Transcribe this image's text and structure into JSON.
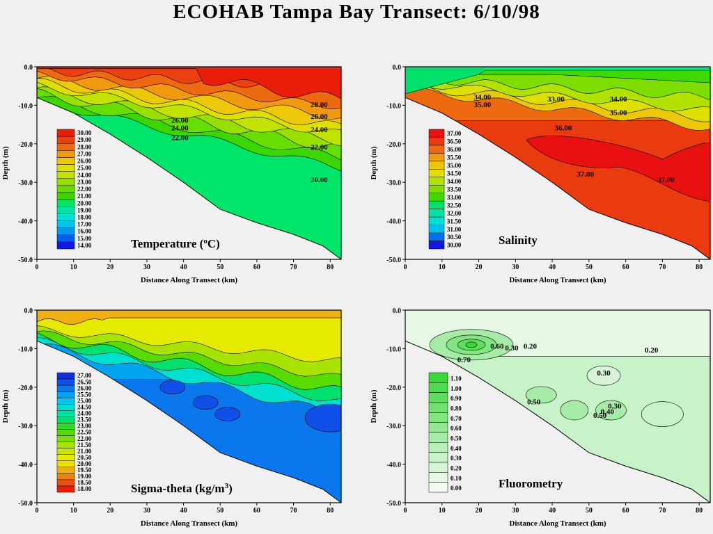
{
  "title": "ECOHAB Tampa Bay Transect: 6/10/98",
  "panels": [
    {
      "id": "temperature",
      "name": "Temperature (",
      "unit_base": "C",
      "unit_sup": "o",
      "unit_tail": ")"
    },
    {
      "id": "salinity",
      "name": "Salinity"
    },
    {
      "id": "sigma-theta",
      "name": "Sigma-theta  (kg/m",
      "unit_sup": "3",
      "unit_tail": ")"
    },
    {
      "id": "fluorometry",
      "name": "Fluorometry"
    }
  ],
  "chart_data": [
    {
      "type": "contour",
      "id": "temperature",
      "xlabel": "Distance Along Transect (km)",
      "ylabel": "Depth (m)",
      "xlim": [
        0,
        83
      ],
      "ylim": [
        -50,
        0
      ],
      "xticks": [
        "0",
        "10",
        "20",
        "30",
        "40",
        "50",
        "60",
        "70",
        "80"
      ],
      "yticks": [
        "0.0",
        "-10.0",
        "-20.0",
        "-30.0",
        "-40.0",
        "-50.0"
      ],
      "legend_values": [
        "30.00",
        "29.00",
        "28.00",
        "27.00",
        "26.00",
        "25.00",
        "24.00",
        "23.00",
        "22.00",
        "21.00",
        "20.00",
        "19.00",
        "18.00",
        "17.00",
        "16.00",
        "15.00",
        "14.00"
      ],
      "legend_colors": [
        "#e81e0a",
        "#ec4010",
        "#ee6a10",
        "#ef9a10",
        "#ecc808",
        "#dde000",
        "#c0e400",
        "#98e000",
        "#66de00",
        "#3ad800",
        "#00e66a",
        "#00e2a6",
        "#00e0d8",
        "#00c4f0",
        "#0098f0",
        "#0060ec",
        "#1018e8"
      ],
      "contour_labels": [
        {
          "text": "28.00",
          "x": 77,
          "y": -10.5
        },
        {
          "text": "26.00",
          "x": 77,
          "y": -13.5
        },
        {
          "text": "26.00",
          "x": 39,
          "y": -14.5
        },
        {
          "text": "24.00",
          "x": 39,
          "y": -16.5
        },
        {
          "text": "24.00",
          "x": 77,
          "y": -17
        },
        {
          "text": "22.00",
          "x": 39,
          "y": -19
        },
        {
          "text": "22.00",
          "x": 77,
          "y": -21.5
        },
        {
          "text": "20.00",
          "x": 77,
          "y": -30
        }
      ]
    },
    {
      "type": "contour",
      "id": "salinity",
      "xlabel": "Distance Along Transect (km)",
      "ylabel": "Depth (m)",
      "xlim": [
        0,
        83
      ],
      "ylim": [
        -50,
        0
      ],
      "xticks": [
        "0",
        "10",
        "20",
        "30",
        "40",
        "50",
        "60",
        "70",
        "80"
      ],
      "yticks": [
        "0.0",
        "-10.0",
        "-20.0",
        "-30.0",
        "-40.0",
        "-50.0"
      ],
      "legend_values": [
        "37.00",
        "36.50",
        "36.00",
        "35.50",
        "35.00",
        "34.50",
        "34.00",
        "33.50",
        "33.00",
        "32.50",
        "32.00",
        "31.50",
        "31.00",
        "30.50",
        "30.00"
      ],
      "legend_colors": [
        "#e81010",
        "#ea3a10",
        "#ee6a10",
        "#ef9a10",
        "#ecc808",
        "#dde000",
        "#b4e200",
        "#7ede00",
        "#40d800",
        "#00e06a",
        "#00e2a6",
        "#00e0d8",
        "#00c0f0",
        "#0070ec",
        "#1018e8"
      ],
      "contour_labels": [
        {
          "text": "34.00",
          "x": 21,
          "y": -8.5
        },
        {
          "text": "35.00",
          "x": 21,
          "y": -10.5
        },
        {
          "text": "33.00",
          "x": 41,
          "y": -9
        },
        {
          "text": "34.00",
          "x": 58,
          "y": -9
        },
        {
          "text": "35.00",
          "x": 58,
          "y": -12.5
        },
        {
          "text": "36.00",
          "x": 43,
          "y": -16.5
        },
        {
          "text": "37.00",
          "x": 49,
          "y": -28.5
        },
        {
          "text": "37.00",
          "x": 71,
          "y": -30
        }
      ]
    },
    {
      "type": "contour",
      "id": "sigma-theta",
      "xlabel": "Distance Along Transect (km)",
      "ylabel": "Depth (m)",
      "xlim": [
        0,
        83
      ],
      "ylim": [
        -50,
        0
      ],
      "xticks": [
        "0",
        "10",
        "20",
        "30",
        "40",
        "50",
        "60",
        "70",
        "80"
      ],
      "yticks": [
        "0.0",
        "-10.0",
        "-20.0",
        "-30.0",
        "-40.0",
        "-50.0"
      ],
      "legend_values": [
        "27.00",
        "26.50",
        "26.00",
        "25.50",
        "25.00",
        "24.50",
        "24.00",
        "23.50",
        "23.00",
        "22.50",
        "22.00",
        "21.50",
        "21.00",
        "20.50",
        "20.00",
        "19.50",
        "19.00",
        "18.50",
        "18.00"
      ],
      "legend_colors": [
        "#1030e0",
        "#1050e8",
        "#0a78ec",
        "#00a4f0",
        "#00c8f0",
        "#00e0d0",
        "#00e2a0",
        "#00e06e",
        "#30dc20",
        "#58dc00",
        "#80e000",
        "#a8e400",
        "#c8e600",
        "#e4ea00",
        "#f0e000",
        "#f0b010",
        "#ee8010",
        "#ec5010",
        "#e81e0a"
      ],
      "contour_labels": []
    },
    {
      "type": "contour",
      "id": "fluorometry",
      "xlabel": "Distance Along Transect (km)",
      "ylabel": "Depth (m)",
      "xlim": [
        0,
        83
      ],
      "ylim": [
        -50,
        0
      ],
      "xticks": [
        "0",
        "10",
        "20",
        "30",
        "40",
        "50",
        "60",
        "70",
        "80"
      ],
      "yticks": [
        "0.0",
        "-10.0",
        "-20.0",
        "-30.0",
        "-40.0",
        "-50.0"
      ],
      "legend_values": [
        "1.10",
        "1.00",
        "0.90",
        "0.80",
        "0.70",
        "0.60",
        "0.50",
        "0.40",
        "0.30",
        "0.20",
        "0.10",
        "0.00"
      ],
      "legend_colors": [
        "#38d838",
        "#4cdc4c",
        "#5ede5e",
        "#70e070",
        "#82e482",
        "#94e894",
        "#a6eca6",
        "#b8f0b8",
        "#c8f2c8",
        "#d8f4d8",
        "#e6f7e6",
        "#f2fbf2"
      ],
      "contour_labels": [
        {
          "text": "0.70",
          "x": 16,
          "y": -13.5
        },
        {
          "text": "0.60",
          "x": 25,
          "y": -10
        },
        {
          "text": "0.30",
          "x": 29,
          "y": -10.5
        },
        {
          "text": "0.20",
          "x": 34,
          "y": -10
        },
        {
          "text": "0.20",
          "x": 67,
          "y": -11
        },
        {
          "text": "0.30",
          "x": 54,
          "y": -17
        },
        {
          "text": "0.50",
          "x": 35,
          "y": -24.5
        },
        {
          "text": "0.50",
          "x": 53,
          "y": -28
        },
        {
          "text": "0.30",
          "x": 57,
          "y": -25.5
        },
        {
          "text": "0.40",
          "x": 55,
          "y": -27
        }
      ]
    }
  ]
}
